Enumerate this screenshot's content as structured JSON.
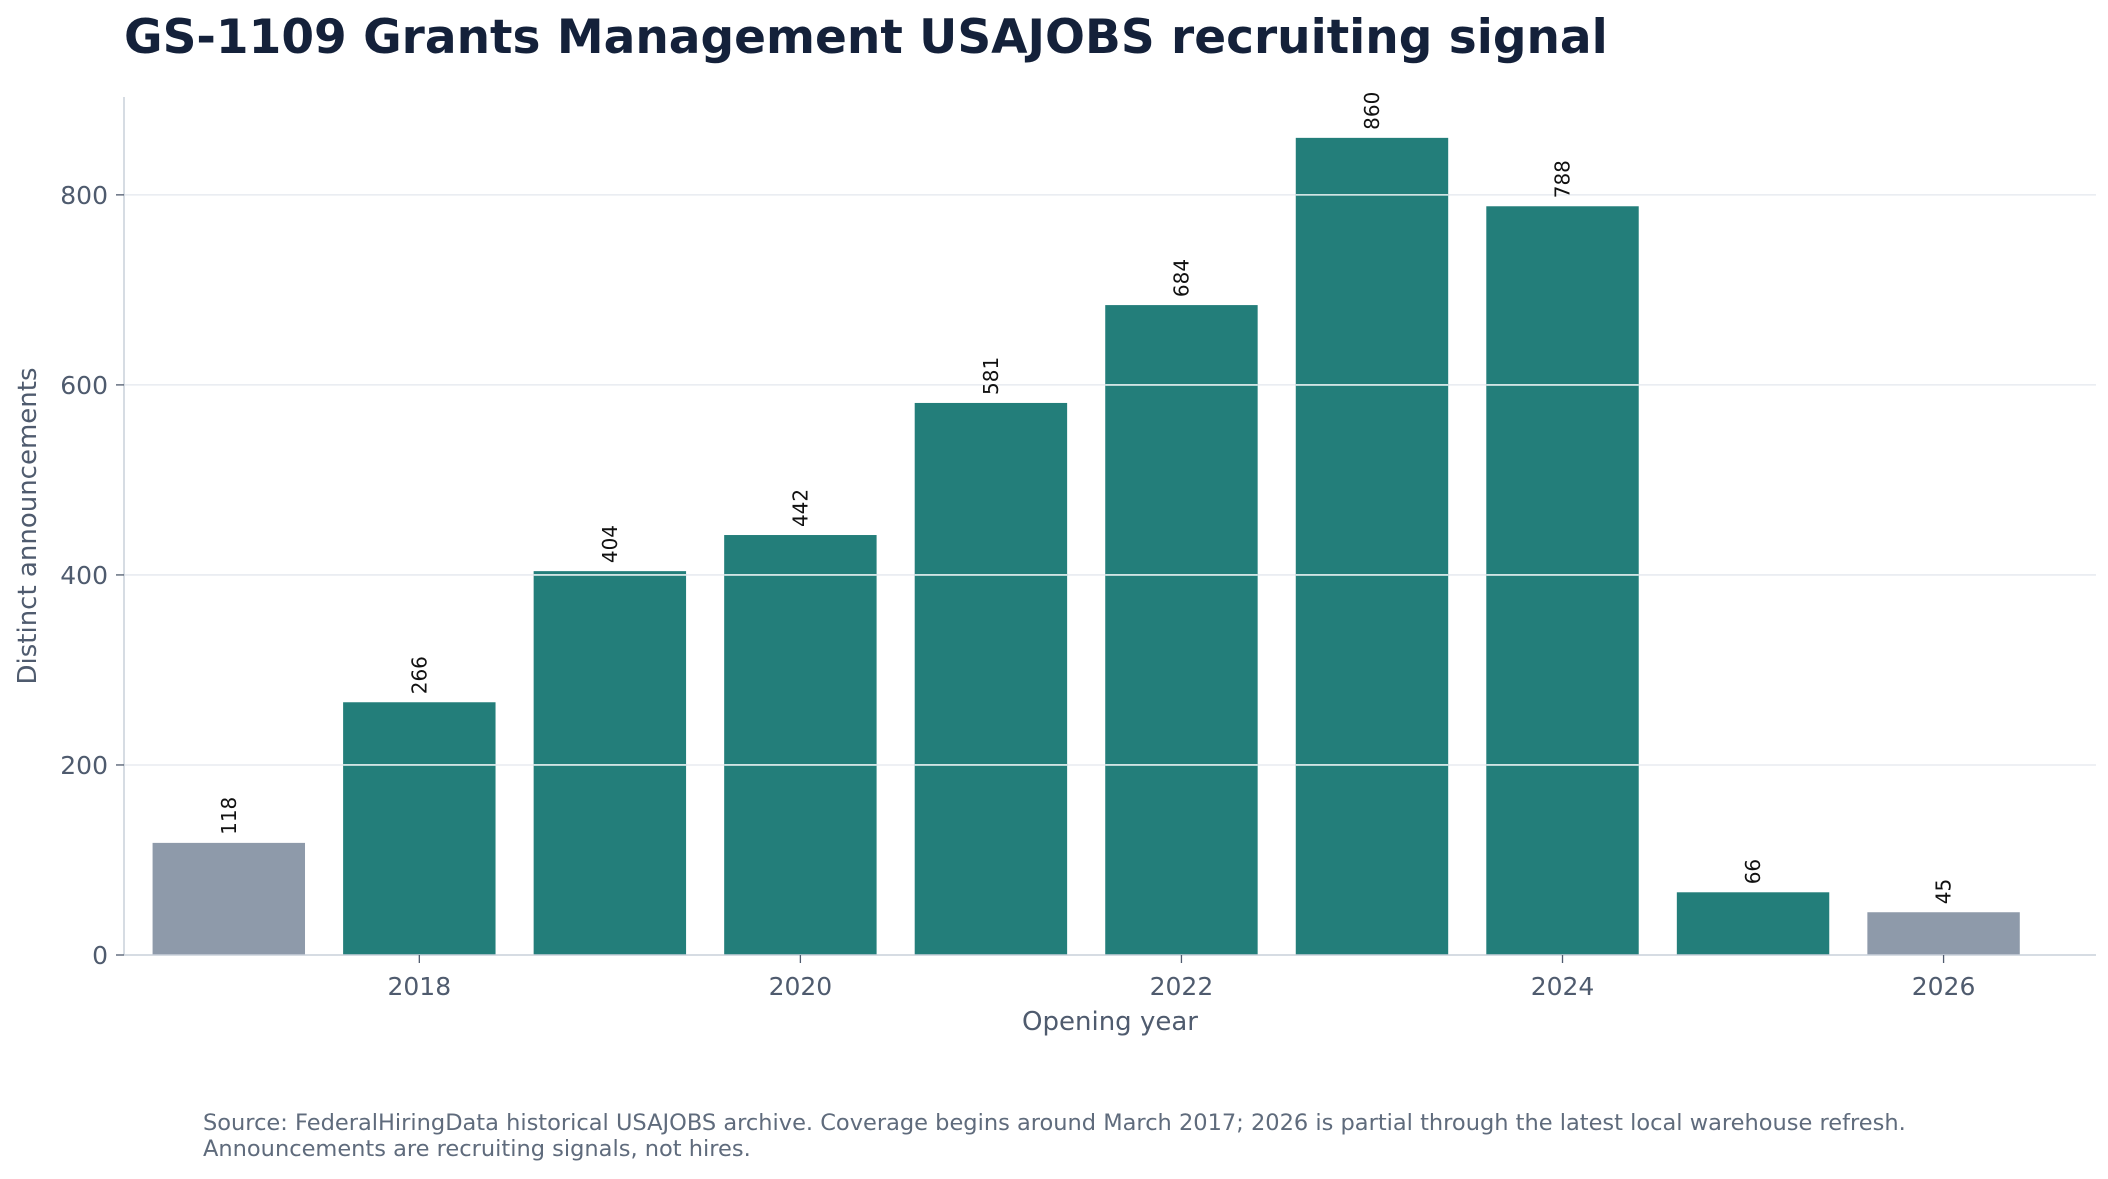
{
  "chart_data": {
    "type": "bar",
    "title": "GS-1109 Grants Management USAJOBS recruiting signal",
    "xlabel": "Opening year",
    "ylabel": "Distinct announcements",
    "categories": [
      2017,
      2018,
      2019,
      2020,
      2021,
      2022,
      2023,
      2024,
      2025,
      2026
    ],
    "values": [
      118,
      266,
      404,
      442,
      581,
      684,
      860,
      788,
      66,
      45
    ],
    "partial": [
      true,
      false,
      false,
      false,
      false,
      false,
      false,
      false,
      false,
      true
    ],
    "x_ticks": [
      2018,
      2020,
      2022,
      2024,
      2026
    ],
    "y_ticks": [
      0,
      200,
      400,
      600,
      800
    ],
    "ylim": [
      0,
      903
    ],
    "xlim": [
      2016.45,
      2026.8
    ],
    "grid": "y",
    "legend": "none",
    "colors": {
      "bar": "#237e7a",
      "bar_partial": "#8e9aaa",
      "grid": "#e3e7ee",
      "axis": "#c9d0da"
    },
    "source_note": "Source: FederalHiringData historical USAJOBS archive. Coverage begins around March 2017; 2026 is partial through the latest local warehouse refresh. Announcements are recruiting signals, not hires."
  }
}
